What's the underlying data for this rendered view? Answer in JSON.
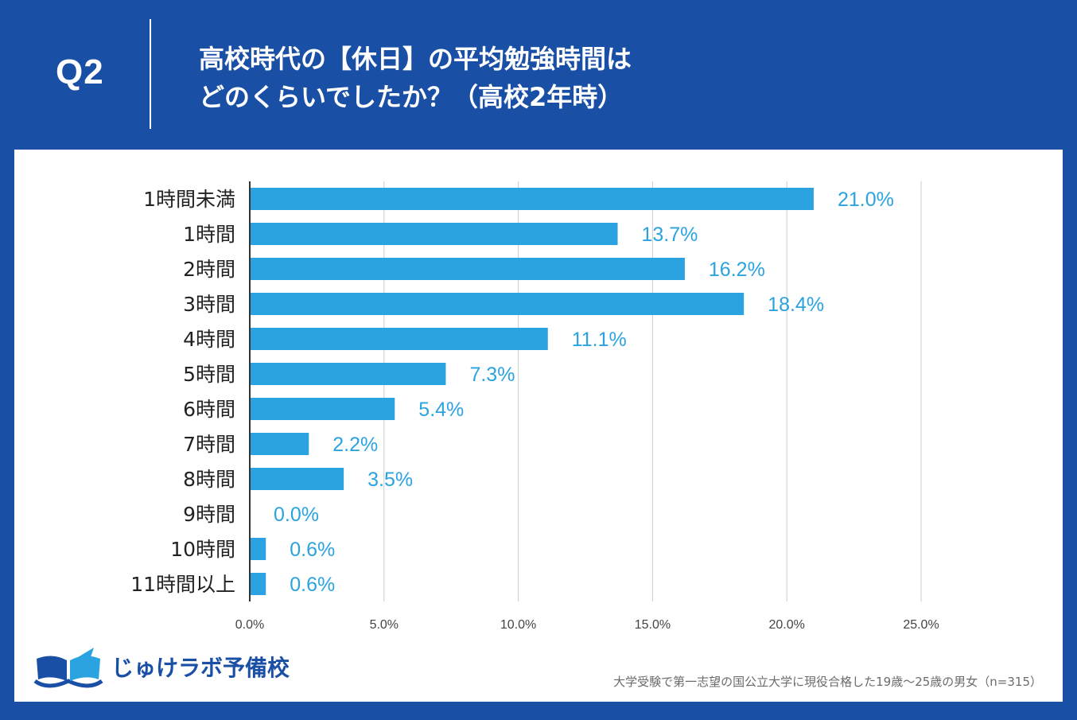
{
  "header": {
    "q_label": "Q2",
    "title_line1": "高校時代の【休日】の平均勉強時間は",
    "title_line2": "どのくらいでしたか？（高校2年時）"
  },
  "logo": {
    "text": "じゅけラボ予備校"
  },
  "footnote": "大学受験で第一志望の国公立大学に現役合格した19歳〜25歳の男女（n=315）",
  "colors": {
    "background": "#1a4fa6",
    "bar": "#2aa3e0",
    "value_label": "#2aa3e0",
    "grid": "#cccccc"
  },
  "chart_data": {
    "type": "bar",
    "orientation": "horizontal",
    "title": "高校時代の【休日】の平均勉強時間はどのくらいでしたか？（高校2年時）",
    "categories": [
      "1時間未満",
      "1時間",
      "2時間",
      "3時間",
      "4時間",
      "5時間",
      "6時間",
      "7時間",
      "8時間",
      "9時間",
      "10時間",
      "11時間以上"
    ],
    "values": [
      21.0,
      13.7,
      16.2,
      18.4,
      11.1,
      7.3,
      5.4,
      2.2,
      3.5,
      0.0,
      0.6,
      0.6
    ],
    "value_labels": [
      "21.0%",
      "13.7%",
      "16.2%",
      "18.4%",
      "11.1%",
      "7.3%",
      "5.4%",
      "2.2%",
      "3.5%",
      "0.0%",
      "0.6%",
      "0.6%"
    ],
    "xlim": [
      0,
      25
    ],
    "xticks": [
      0,
      5,
      10,
      15,
      20,
      25
    ],
    "xtick_labels": [
      "0.0%",
      "5.0%",
      "10.0%",
      "15.0%",
      "20.0%",
      "25.0%"
    ],
    "grid": true,
    "xlabel": "",
    "ylabel": ""
  }
}
